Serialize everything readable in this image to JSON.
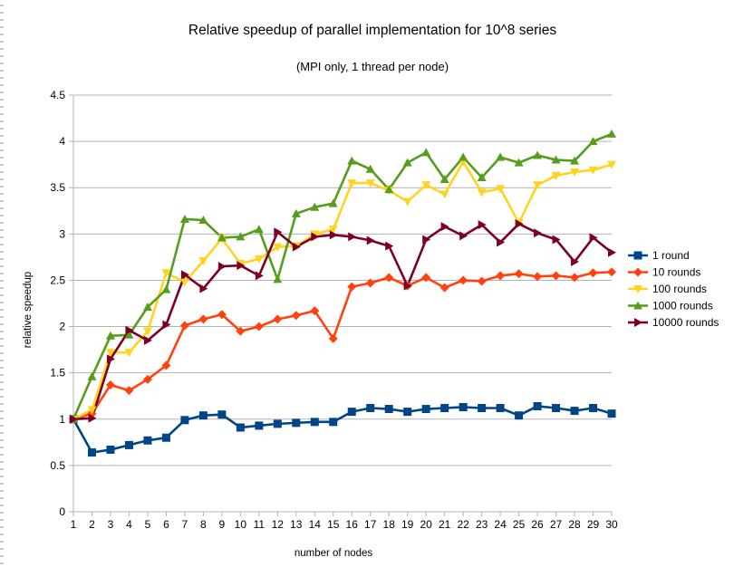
{
  "chart_data": {
    "type": "line",
    "title": "Relative speedup of parallel implementation for 10^8 series",
    "subtitle": "(MPI only, 1 thread per node)",
    "xlabel": "number of nodes",
    "ylabel": "relative speedup",
    "x": [
      1,
      2,
      3,
      4,
      5,
      6,
      7,
      8,
      9,
      10,
      11,
      12,
      13,
      14,
      15,
      16,
      17,
      18,
      19,
      20,
      21,
      22,
      23,
      24,
      25,
      26,
      27,
      28,
      29,
      30
    ],
    "xlim": [
      1,
      30
    ],
    "ylim": [
      0,
      4.5
    ],
    "y_ticks": [
      "0",
      "0.5",
      "1",
      "1.5",
      "2",
      "2.5",
      "3",
      "3.5",
      "4",
      "4.5"
    ],
    "x_ticks": [
      "1",
      "2",
      "3",
      "4",
      "5",
      "6",
      "7",
      "8",
      "9",
      "10",
      "11",
      "12",
      "13",
      "14",
      "15",
      "16",
      "17",
      "18",
      "19",
      "20",
      "21",
      "22",
      "23",
      "24",
      "25",
      "26",
      "27",
      "28",
      "29",
      "30"
    ],
    "grid": "horizontal",
    "legend_position": "right",
    "series": [
      {
        "name": "1 round",
        "color": "#004586",
        "marker": "square",
        "values": [
          1.0,
          0.64,
          0.67,
          0.72,
          0.77,
          0.8,
          0.99,
          1.04,
          1.05,
          0.91,
          0.93,
          0.95,
          0.96,
          0.97,
          0.97,
          1.08,
          1.12,
          1.11,
          1.08,
          1.11,
          1.12,
          1.13,
          1.12,
          1.12,
          1.04,
          1.14,
          1.12,
          1.09,
          1.12,
          1.06
        ]
      },
      {
        "name": "10 rounds",
        "color": "#ff420e",
        "marker": "diamond",
        "values": [
          1.0,
          1.06,
          1.37,
          1.31,
          1.43,
          1.58,
          2.01,
          2.08,
          2.13,
          1.95,
          2.0,
          2.08,
          2.12,
          2.17,
          1.87,
          2.43,
          2.47,
          2.53,
          2.44,
          2.53,
          2.42,
          2.5,
          2.49,
          2.55,
          2.57,
          2.54,
          2.55,
          2.53,
          2.58,
          2.59
        ]
      },
      {
        "name": "100 rounds",
        "color": "#ffd320",
        "marker": "triangle-down",
        "values": [
          1.0,
          1.1,
          1.72,
          1.72,
          1.95,
          2.58,
          2.48,
          2.71,
          2.95,
          2.68,
          2.73,
          2.86,
          2.87,
          3.0,
          3.05,
          3.55,
          3.55,
          3.47,
          3.35,
          3.53,
          3.43,
          3.78,
          3.45,
          3.49,
          3.12,
          3.53,
          3.63,
          3.67,
          3.69,
          3.75
        ]
      },
      {
        "name": "1000 rounds",
        "color": "#579d1c",
        "marker": "triangle-up",
        "values": [
          1.0,
          1.46,
          1.9,
          1.91,
          2.21,
          2.4,
          3.16,
          3.15,
          2.96,
          2.97,
          3.05,
          2.51,
          3.22,
          3.29,
          3.33,
          3.79,
          3.7,
          3.48,
          3.77,
          3.88,
          3.59,
          3.83,
          3.61,
          3.83,
          3.77,
          3.85,
          3.8,
          3.79,
          4.0,
          4.08
        ]
      },
      {
        "name": "10000 rounds",
        "color": "#7e0021",
        "marker": "triangle-right",
        "values": [
          1.0,
          1.01,
          1.65,
          1.96,
          1.85,
          2.02,
          2.56,
          2.41,
          2.65,
          2.66,
          2.55,
          3.02,
          2.86,
          2.97,
          2.99,
          2.97,
          2.93,
          2.87,
          2.44,
          2.94,
          3.08,
          2.98,
          3.1,
          2.91,
          3.11,
          3.01,
          2.94,
          2.7,
          2.96,
          2.8
        ]
      }
    ]
  }
}
